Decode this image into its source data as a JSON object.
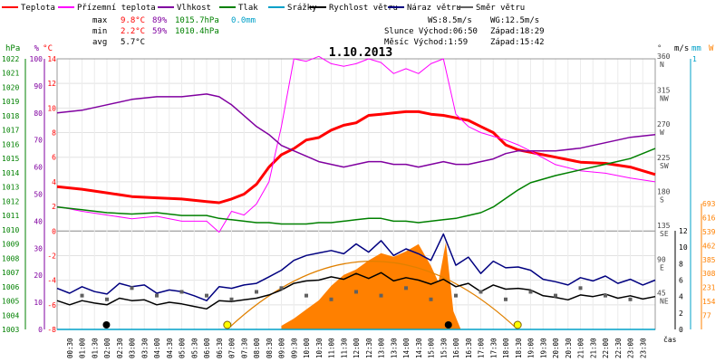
{
  "chart_data": {
    "type": "line",
    "title": "1.10.2013",
    "legend": [
      {
        "label": "Teplota",
        "color": "#ff0000"
      },
      {
        "label": "Přízemní teplota",
        "color": "#ff00ff"
      },
      {
        "label": "Vlhkost",
        "color": "#8000a0"
      },
      {
        "label": "Tlak",
        "color": "#008000"
      },
      {
        "label": "Srážky",
        "color": "#00a0c8"
      },
      {
        "label": "Rychlost větru",
        "color": "#000000"
      },
      {
        "label": "Náraz větru",
        "color": "#000080"
      },
      {
        "label": "Směr větru",
        "color": "#606060"
      }
    ],
    "stats": {
      "rows": [
        {
          "label": "max",
          "temp": "9.8°C",
          "hum": "89%",
          "press": "1015.7hPa",
          "rain": "0.0mm"
        },
        {
          "label": "min",
          "temp": "2.2°C",
          "hum": "59%",
          "press": "1010.4hPa",
          "rain": ""
        },
        {
          "label": "avg",
          "temp": "5.7°C",
          "hum": "",
          "press": "",
          "rain": ""
        }
      ]
    },
    "info": {
      "ws": "WS:8.5m/s",
      "wg": "WG:12.5m/s",
      "sun_rise": "Slunce Východ:06:50",
      "sun_set": "Západ:18:29",
      "moon_rise": "Měsíc Východ:1:59",
      "moon_set": "Západ:15:42"
    },
    "axes": {
      "hpa": {
        "title": "hPa",
        "color": "#008000",
        "ticks": [
          "1022",
          "1021",
          "1020",
          "1019",
          "1018",
          "1017",
          "1016",
          "1015",
          "1014",
          "1013",
          "1012",
          "1011",
          "1010",
          "1009",
          "1008",
          "1007",
          "1006",
          "1005",
          "1004",
          "1003"
        ]
      },
      "pct": {
        "title": "%",
        "color": "#8000a0",
        "ticks": [
          "100",
          "90",
          "80",
          "70",
          "60",
          "50",
          "40",
          "30",
          "20",
          "10",
          "0"
        ]
      },
      "temp": {
        "title": "°C",
        "color": "#ff0000",
        "ticks": [
          "14",
          "12",
          "10",
          "8",
          "6",
          "4",
          "2",
          "0",
          "-2",
          "-4",
          "-6",
          "-8"
        ]
      },
      "dir": {
        "title": "°",
        "ticks": [
          {
            "deg": "360",
            "pt": "N"
          },
          {
            "deg": "315",
            "pt": "NW"
          },
          {
            "deg": "270",
            "pt": "W"
          },
          {
            "deg": "225",
            "pt": "SW"
          },
          {
            "deg": "180",
            "pt": "S"
          },
          {
            "deg": "135",
            "pt": "SE"
          },
          {
            "deg": "90",
            "pt": "E"
          },
          {
            "deg": "45",
            "pt": "NE"
          }
        ]
      },
      "ms": {
        "title": "m/s",
        "ticks": [
          "12",
          "10",
          "8",
          "6",
          "4",
          "2",
          "0"
        ]
      },
      "mm": {
        "title": "mm",
        "color": "#00a0c8",
        "ticks": [
          "1"
        ]
      },
      "wm2": {
        "title": "W",
        "color": "#ff8000",
        "ticks": [
          "693",
          "616",
          "539",
          "462",
          "385",
          "308",
          "231",
          "154",
          "77"
        ]
      },
      "xlabel": "čas",
      "xticks": [
        "00:30",
        "01:00",
        "01:30",
        "02:00",
        "02:30",
        "03:00",
        "03:30",
        "04:00",
        "04:30",
        "05:00",
        "05:30",
        "06:00",
        "06:30",
        "07:00",
        "07:30",
        "08:00",
        "08:30",
        "09:00",
        "09:30",
        "10:00",
        "10:30",
        "11:00",
        "11:30",
        "12:00",
        "12:30",
        "13:00",
        "13:30",
        "14:00",
        "14:30",
        "15:00",
        "15:30",
        "16:00",
        "16:30",
        "17:00",
        "17:30",
        "18:00",
        "18:30",
        "19:00",
        "19:30",
        "20:00",
        "20:30",
        "21:00",
        "21:30",
        "22:00",
        "22:30",
        "23:00",
        "23:30"
      ]
    },
    "xlim_hours": [
      0,
      24
    ],
    "series": [
      {
        "name": "Teplota",
        "axis": "temp",
        "color": "#ff0000",
        "x": [
          0,
          1,
          2,
          3,
          4,
          5,
          6,
          6.5,
          7,
          7.5,
          8,
          8.5,
          9,
          9.5,
          10,
          10.5,
          11,
          11.5,
          12,
          12.5,
          13,
          13.5,
          14,
          14.5,
          15,
          15.5,
          16,
          16.5,
          17,
          17.5,
          18,
          18.5,
          19,
          19.5,
          20,
          21,
          22,
          23,
          24
        ],
        "y": [
          3.6,
          3.4,
          3.1,
          2.8,
          2.7,
          2.6,
          2.4,
          2.3,
          2.6,
          3.0,
          3.8,
          5.2,
          6.2,
          6.7,
          7.4,
          7.6,
          8.2,
          8.6,
          8.8,
          9.4,
          9.5,
          9.6,
          9.7,
          9.7,
          9.5,
          9.4,
          9.2,
          9.0,
          8.5,
          8.0,
          7.0,
          6.6,
          6.4,
          6.2,
          6.0,
          5.6,
          5.5,
          5.2,
          4.6
        ]
      },
      {
        "name": "Přízemní teplota",
        "axis": "temp",
        "color": "#ff00ff",
        "x": [
          0,
          1,
          2,
          3,
          4,
          5,
          6,
          6.5,
          7,
          7.5,
          8,
          8.5,
          9,
          9.5,
          10,
          10.5,
          11,
          11.5,
          12,
          12.5,
          13,
          13.5,
          14,
          14.5,
          15,
          15.5,
          16,
          16.5,
          17,
          17.5,
          18,
          18.5,
          19,
          20,
          21,
          22,
          23,
          24
        ],
        "y": [
          2.0,
          1.6,
          1.3,
          1.0,
          1.2,
          0.8,
          0.8,
          -0.1,
          1.6,
          1.3,
          2.2,
          4.0,
          8.5,
          14.0,
          13.8,
          14.2,
          13.6,
          13.4,
          13.6,
          14.0,
          13.7,
          12.8,
          13.2,
          12.8,
          13.6,
          14.0,
          9.5,
          8.5,
          8.0,
          7.7,
          7.4,
          7.0,
          6.5,
          5.4,
          4.9,
          4.7,
          4.3,
          4.0
        ]
      },
      {
        "name": "Vlhkost",
        "axis": "pct",
        "color": "#8000a0",
        "x": [
          0,
          1,
          2,
          3,
          4,
          5,
          6,
          6.5,
          7,
          7.5,
          8,
          8.5,
          9,
          9.5,
          10,
          10.5,
          11,
          11.5,
          12,
          12.5,
          13,
          13.5,
          14,
          14.5,
          15,
          15.5,
          16,
          16.5,
          17,
          17.5,
          18,
          18.5,
          19,
          20,
          21,
          22,
          23,
          24
        ],
        "y": [
          80,
          81,
          83,
          85,
          86,
          86,
          87,
          86,
          83,
          79,
          75,
          72,
          68,
          66,
          64,
          62,
          61,
          60,
          61,
          62,
          62,
          61,
          61,
          60,
          61,
          62,
          61,
          61,
          62,
          63,
          65,
          66,
          66,
          66,
          67,
          69,
          71,
          72
        ]
      },
      {
        "name": "Tlak",
        "axis": "hpa",
        "color": "#008000",
        "x": [
          0,
          1,
          2,
          3,
          4,
          5,
          6,
          6.5,
          7,
          7.5,
          8,
          8.5,
          9,
          9.5,
          10,
          10.5,
          11,
          11.5,
          12,
          12.5,
          13,
          13.5,
          14,
          14.5,
          15,
          15.5,
          16,
          16.5,
          17,
          17.5,
          18,
          18.5,
          19,
          20,
          21,
          22,
          23,
          24
        ],
        "y": [
          1011.6,
          1011.4,
          1011.2,
          1011.1,
          1011.2,
          1011.0,
          1011.0,
          1010.8,
          1010.7,
          1010.6,
          1010.5,
          1010.5,
          1010.4,
          1010.4,
          1010.4,
          1010.5,
          1010.5,
          1010.6,
          1010.7,
          1010.8,
          1010.8,
          1010.6,
          1010.6,
          1010.5,
          1010.6,
          1010.7,
          1010.8,
          1011.0,
          1011.2,
          1011.6,
          1012.2,
          1012.8,
          1013.3,
          1013.8,
          1014.2,
          1014.6,
          1015.0,
          1015.7
        ]
      },
      {
        "name": "Rychlost větru",
        "axis": "ms",
        "color": "#000000",
        "x": [
          0,
          0.5,
          1,
          1.5,
          2,
          2.5,
          3,
          3.5,
          4,
          4.5,
          5,
          5.5,
          6,
          6.5,
          7,
          7.5,
          8,
          8.5,
          9,
          9.5,
          10,
          10.5,
          11,
          11.5,
          12,
          12.5,
          13,
          13.5,
          14,
          14.5,
          15,
          15.5,
          16,
          16.5,
          17,
          17.5,
          18,
          18.5,
          19,
          19.5,
          20,
          20.5,
          21,
          21.5,
          22,
          22.5,
          23,
          23.5,
          24
        ],
        "y": [
          3.5,
          3.0,
          3.5,
          3.2,
          3.0,
          3.8,
          3.5,
          3.6,
          3.0,
          3.3,
          3.1,
          2.8,
          2.5,
          3.5,
          3.4,
          3.6,
          3.8,
          4.2,
          4.8,
          5.6,
          5.9,
          6.0,
          6.4,
          6.1,
          6.8,
          6.2,
          6.9,
          5.9,
          6.3,
          6.0,
          5.5,
          6.1,
          5.2,
          5.6,
          4.6,
          5.4,
          4.9,
          5.0,
          4.8,
          4.1,
          3.9,
          3.6,
          4.2,
          4.0,
          4.3,
          3.8,
          4.1,
          3.7,
          4.0
        ]
      },
      {
        "name": "Náraz větru",
        "axis": "ms",
        "color": "#000080",
        "x": [
          0,
          0.5,
          1,
          1.5,
          2,
          2.5,
          3,
          3.5,
          4,
          4.5,
          5,
          5.5,
          6,
          6.5,
          7,
          7.5,
          8,
          8.5,
          9,
          9.5,
          10,
          10.5,
          11,
          11.5,
          12,
          12.5,
          13,
          13.5,
          14,
          14.5,
          15,
          15.5,
          16,
          16.5,
          17,
          17.5,
          18,
          18.5,
          19,
          19.5,
          20,
          20.5,
          21,
          21.5,
          22,
          22.5,
          23,
          23.5,
          24
        ],
        "y": [
          5.0,
          4.4,
          5.2,
          4.6,
          4.3,
          5.6,
          5.2,
          5.4,
          4.4,
          4.8,
          4.6,
          4.1,
          3.5,
          5.2,
          5.0,
          5.4,
          5.6,
          6.4,
          7.2,
          8.4,
          9.0,
          9.3,
          9.6,
          9.2,
          10.4,
          9.4,
          10.8,
          9.0,
          9.8,
          9.2,
          8.4,
          11.6,
          7.8,
          8.8,
          6.8,
          8.3,
          7.5,
          7.6,
          7.2,
          6.1,
          5.8,
          5.4,
          6.3,
          5.9,
          6.5,
          5.6,
          6.1,
          5.4,
          6.0
        ]
      },
      {
        "name": "Směr větru",
        "axis": "dir",
        "color": "#606060",
        "x": [
          1,
          2,
          3,
          4,
          5,
          6,
          7,
          8,
          9,
          10,
          11,
          12,
          13,
          14,
          15,
          16,
          17,
          18,
          19,
          20,
          21,
          22,
          23
        ],
        "y": [
          45,
          40,
          55,
          45,
          50,
          45,
          40,
          50,
          55,
          45,
          40,
          50,
          45,
          55,
          40,
          45,
          50,
          40,
          50,
          45,
          55,
          45,
          40
        ]
      },
      {
        "name": "Srážky",
        "axis": "mm",
        "color": "#00a0c8",
        "x": [
          0,
          24
        ],
        "y": [
          0,
          0
        ]
      }
    ],
    "solar": {
      "name": "solar radiation",
      "axis": "wm2",
      "color": "#ff8000",
      "x": [
        9.0,
        9.5,
        10.0,
        10.5,
        11.0,
        11.5,
        12.0,
        12.5,
        13.0,
        13.5,
        14.0,
        14.5,
        15.0,
        15.3,
        15.6,
        15.9,
        16.2
      ],
      "y": [
        20,
        60,
        110,
        160,
        240,
        300,
        330,
        380,
        420,
        400,
        430,
        470,
        350,
        260,
        480,
        100,
        0
      ]
    },
    "sun_arc": {
      "rise": 6.83,
      "set": 18.48,
      "peak": 12.65,
      "peak_value": 8.3
    },
    "markers": [
      {
        "type": "moon",
        "hour": 1.98
      },
      {
        "type": "sun",
        "hour": 6.83
      },
      {
        "type": "moon",
        "hour": 15.7
      },
      {
        "type": "sun",
        "hour": 18.48
      }
    ]
  }
}
